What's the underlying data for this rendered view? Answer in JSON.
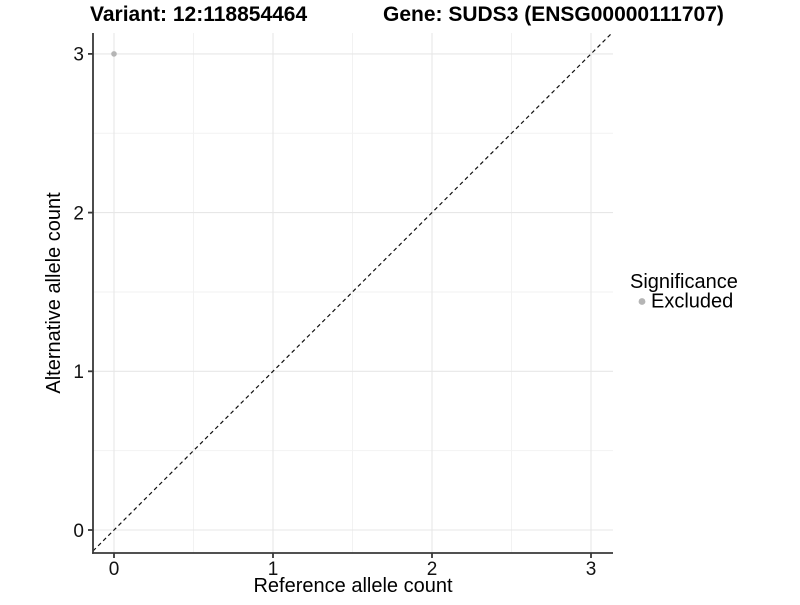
{
  "titles": {
    "left": "Variant: 12:118854464",
    "right": "Gene: SUDS3 (ENSG00000111707)"
  },
  "legend": {
    "title": "Significance",
    "items": [
      {
        "label": "Excluded",
        "color": "#b5b5b5"
      }
    ]
  },
  "colors": {
    "point_excluded": "#b5b5b5",
    "grid_major": "#e7e7e7",
    "grid_minor": "#f2f2f2",
    "axis_line": "#383838",
    "reference_line": "#111111"
  },
  "chart_data": {
    "type": "scatter",
    "title_left": "Variant: 12:118854464",
    "title_right": "Gene: SUDS3 (ENSG00000111707)",
    "xlabel": "Reference allele count",
    "ylabel": "Alternative allele count",
    "legend_title": "Significance",
    "legend_position": "right",
    "grid": true,
    "x_ticks": [
      0,
      1,
      2,
      3
    ],
    "y_ticks": [
      0,
      1,
      2,
      3
    ],
    "x_minor_ticks": [
      0.5,
      1.5,
      2.5
    ],
    "y_minor_ticks": [
      0.5,
      1.5,
      2.5
    ],
    "xlim": [
      -0.13,
      3.14
    ],
    "ylim": [
      -0.15,
      3.13
    ],
    "reference_line": {
      "type": "identity",
      "style": "dashed",
      "equation": "y = x"
    },
    "series": [
      {
        "name": "Excluded",
        "color": "#b5b5b5",
        "points": [
          {
            "x": 0,
            "y": 3
          }
        ]
      }
    ]
  }
}
